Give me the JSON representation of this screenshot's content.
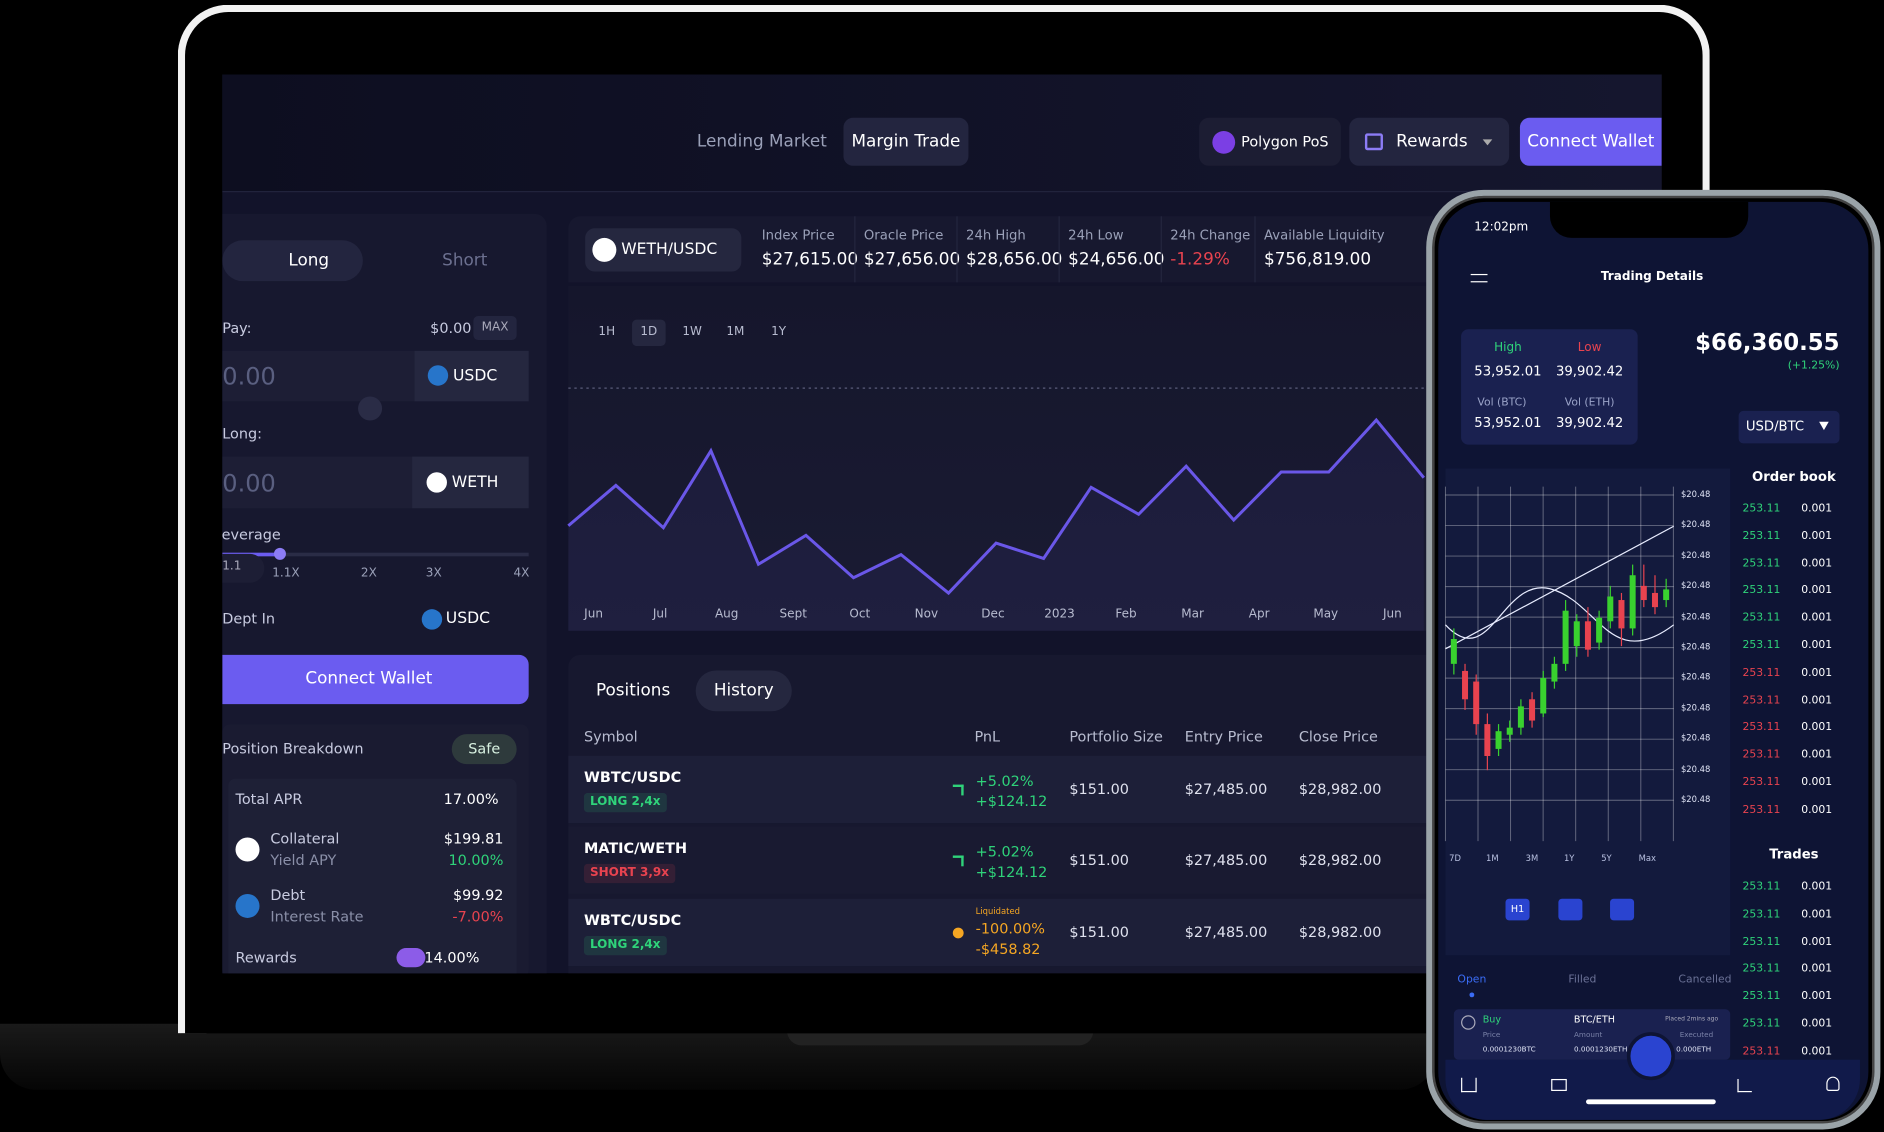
{
  "nav": {
    "links": [
      "Lending Market",
      "Margin Trade"
    ],
    "network": "Polygon PoS",
    "rewards": "Rewards",
    "connect": "Connect Wallet"
  },
  "trade_form": {
    "tabs": [
      "Long",
      "Short"
    ],
    "pay_label": "Pay:",
    "balance": "$0.00",
    "max": "MAX",
    "pay_amount": "0.00",
    "pay_token": "USDC",
    "long_label": "Long:",
    "long_amount": "0.00",
    "long_token": "WETH",
    "leverage_label": "Leverage",
    "leverage_value": "1.1",
    "leverage_ticks": [
      "1.1X",
      "2X",
      "3X",
      "4X"
    ],
    "debt_label": "Dept In",
    "debt_token": "USDC",
    "button": "Connect Wallet"
  },
  "breakdown": {
    "title": "Position Breakdown",
    "status": "Safe",
    "total_apr_label": "Total APR",
    "total_apr": "17.00%",
    "items": [
      {
        "label": "Collateral",
        "value": "$199.81",
        "sub_label": "Yield APY",
        "sub_value": "10.00%",
        "color": "#2fd37a"
      },
      {
        "label": "Debt",
        "value": "$99.92",
        "sub_label": "Interest Rate",
        "sub_value": "-7.00%",
        "color": "#e8434f"
      }
    ],
    "rewards_label": "Rewards",
    "rewards": "14.00%"
  },
  "market": {
    "pair": "WETH/USDC",
    "stats": [
      {
        "label": "Index Price",
        "value": "$27,615.00"
      },
      {
        "label": "Oracle Price",
        "value": "$27,656.00"
      },
      {
        "label": "24h High",
        "value": "$28,656.00"
      },
      {
        "label": "24h Low",
        "value": "$24,656.00"
      },
      {
        "label": "24h Change",
        "value": "-1.29%",
        "color": "#e8434f"
      },
      {
        "label": "Available Liquidity",
        "value": "$756,819.00"
      }
    ],
    "ranges": [
      "1H",
      "1D",
      "1W",
      "1M",
      "1Y"
    ]
  },
  "price_chart": {
    "type": "line",
    "color": "#6a57e8",
    "axis_labels": [
      "Jun",
      "Jul",
      "Aug",
      "Sept",
      "Oct",
      "Nov",
      "Dec",
      "2023",
      "Feb",
      "Mar",
      "Apr",
      "May",
      "Jun"
    ],
    "values": [
      39,
      60,
      38,
      78,
      19,
      34,
      12,
      24,
      4,
      30,
      22,
      59,
      45,
      70,
      42,
      67,
      67,
      94,
      64
    ]
  },
  "positions": {
    "tabs": [
      "Positions",
      "History"
    ],
    "columns": [
      "Symbol",
      "PnL",
      "Portfolio Size",
      "Entry Price",
      "Close Price"
    ],
    "rows": [
      {
        "symbol": "WBTC/USDC",
        "side": "LONG 2,4x",
        "side_color": "#2fd37a",
        "pnl_pct": "+5.02%",
        "pnl_usd": "+$124.12",
        "pnl_color": "#2fd37a",
        "size": "$151.00",
        "entry": "$27,485.00",
        "close": "$28,982.00"
      },
      {
        "symbol": "MATIC/WETH",
        "side": "SHORT 3,9x",
        "side_color": "#e8434f",
        "pnl_pct": "+5.02%",
        "pnl_usd": "+$124.12",
        "pnl_color": "#2fd37a",
        "size": "$151.00",
        "entry": "$27,485.00",
        "close": "$28,982.00"
      },
      {
        "symbol": "WBTC/USDC",
        "side": "LONG 2,4x",
        "side_color": "#2fd37a",
        "status": "Liquidated",
        "pnl_pct": "-100.00%",
        "pnl_usd": "-$458.82",
        "pnl_color": "#f5a623",
        "size": "$151.00",
        "entry": "$27,485.00",
        "close": "$28,982.00"
      }
    ]
  },
  "phone": {
    "time": "12:02pm",
    "title": "Trading Details",
    "high_label": "High",
    "high": "53,952.01",
    "low_label": "Low",
    "low": "39,902.42",
    "vol_btc_label": "Vol (BTC)",
    "vol_btc": "53,952.01",
    "vol_eth_label": "Vol (ETH)",
    "vol_eth": "39,902.42",
    "price": "$66,360.55",
    "change": "(+1.25%)",
    "pair": "USD/BTC",
    "price_labels": [
      "$20.48",
      "$20.48",
      "$20.48",
      "$20.48",
      "$20.48",
      "$20.48",
      "$20.48",
      "$20.48",
      "$20.48",
      "$20.48",
      "$20.48"
    ],
    "candles": [
      {
        "o": 50,
        "c": 57,
        "h": 60,
        "l": 47
      },
      {
        "o": 48,
        "c": 40,
        "h": 50,
        "l": 37
      },
      {
        "o": 45,
        "c": 33,
        "h": 47,
        "l": 30
      },
      {
        "o": 33,
        "c": 24,
        "h": 36,
        "l": 20
      },
      {
        "o": 26,
        "c": 31,
        "h": 33,
        "l": 24
      },
      {
        "o": 30,
        "c": 32,
        "h": 34,
        "l": 28
      },
      {
        "o": 32,
        "c": 38,
        "h": 40,
        "l": 30
      },
      {
        "o": 40,
        "c": 34,
        "h": 42,
        "l": 32
      },
      {
        "o": 36,
        "c": 46,
        "h": 48,
        "l": 35
      },
      {
        "o": 45,
        "c": 50,
        "h": 52,
        "l": 43
      },
      {
        "o": 50,
        "c": 65,
        "h": 68,
        "l": 48
      },
      {
        "o": 55,
        "c": 62,
        "h": 64,
        "l": 52
      },
      {
        "o": 62,
        "c": 54,
        "h": 66,
        "l": 52
      },
      {
        "o": 56,
        "c": 63,
        "h": 65,
        "l": 54
      },
      {
        "o": 62,
        "c": 69,
        "h": 72,
        "l": 60
      },
      {
        "o": 68,
        "c": 60,
        "h": 70,
        "l": 55
      },
      {
        "o": 60,
        "c": 75,
        "h": 78,
        "l": 58
      },
      {
        "o": 72,
        "c": 68,
        "h": 78,
        "l": 66
      },
      {
        "o": 70,
        "c": 66,
        "h": 75,
        "l": 64
      },
      {
        "o": 68,
        "c": 71,
        "h": 74,
        "l": 66
      }
    ],
    "ranges": [
      "7D",
      "1M",
      "3M",
      "1Y",
      "5Y",
      "Max"
    ],
    "interval": "H1",
    "order_book": {
      "title": "Order book",
      "rows": [
        {
          "price": "253.11",
          "qty": "0.001",
          "color": "#2fd37a"
        },
        {
          "price": "253.11",
          "qty": "0.001",
          "color": "#2fd37a"
        },
        {
          "price": "253.11",
          "qty": "0.001",
          "color": "#2fd37a"
        },
        {
          "price": "253.11",
          "qty": "0.001",
          "color": "#2fd37a"
        },
        {
          "price": "253.11",
          "qty": "0.001",
          "color": "#2fd37a"
        },
        {
          "price": "253.11",
          "qty": "0.001",
          "color": "#2fd37a"
        },
        {
          "price": "253.11",
          "qty": "0.001",
          "color": "#e8434f"
        },
        {
          "price": "253.11",
          "qty": "0.001",
          "color": "#e8434f"
        },
        {
          "price": "253.11",
          "qty": "0.001",
          "color": "#e8434f"
        },
        {
          "price": "253.11",
          "qty": "0.001",
          "color": "#e8434f"
        },
        {
          "price": "253.11",
          "qty": "0.001",
          "color": "#e8434f"
        },
        {
          "price": "253.11",
          "qty": "0.001",
          "color": "#e8434f"
        }
      ]
    },
    "trades": {
      "title": "Trades",
      "rows": [
        {
          "price": "253.11",
          "qty": "0.001",
          "color": "#2fd37a"
        },
        {
          "price": "253.11",
          "qty": "0.001",
          "color": "#2fd37a"
        },
        {
          "price": "253.11",
          "qty": "0.001",
          "color": "#2fd37a"
        },
        {
          "price": "253.11",
          "qty": "0.001",
          "color": "#2fd37a"
        },
        {
          "price": "253.11",
          "qty": "0.001",
          "color": "#2fd37a"
        },
        {
          "price": "253.11",
          "qty": "0.001",
          "color": "#2fd37a"
        },
        {
          "price": "253.11",
          "qty": "0.001",
          "color": "#e8434f"
        }
      ]
    },
    "order_tabs": [
      "Open",
      "Filled",
      "Cancelled"
    ],
    "order": {
      "side": "Buy",
      "pair": "BTC/ETH",
      "placed": "Placed 2mins ago",
      "price_label": "Price",
      "amount_label": "Amount",
      "executed_label": "Executed",
      "price": "0.0001230BTC",
      "amount": "0.0001230ETH",
      "executed": "0.000ETH"
    }
  }
}
